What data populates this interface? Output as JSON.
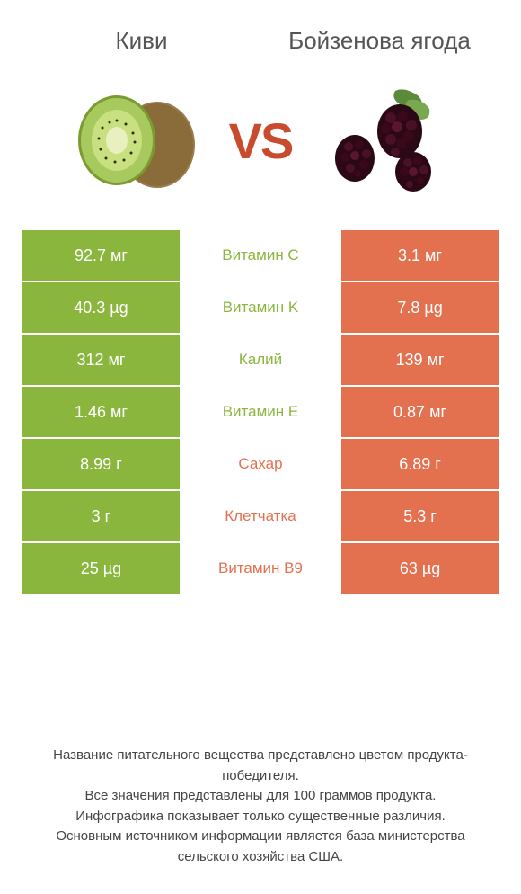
{
  "colors": {
    "left_bg": "#8bb63e",
    "right_bg": "#e3704f",
    "left_text": "#8bb63e",
    "right_text": "#e3704f",
    "vs": "#c94b2e"
  },
  "header": {
    "left_title": "Киви",
    "right_title": "Бойзенова ягода",
    "vs": "VS"
  },
  "nutrients": [
    {
      "left": "92.7 мг",
      "label": "Витамин C",
      "right": "3.1 мг",
      "winner": "left"
    },
    {
      "left": "40.3 µg",
      "label": "Витамин K",
      "right": "7.8 µg",
      "winner": "left"
    },
    {
      "left": "312 мг",
      "label": "Калий",
      "right": "139 мг",
      "winner": "left"
    },
    {
      "left": "1.46 мг",
      "label": "Витамин E",
      "right": "0.87 мг",
      "winner": "left"
    },
    {
      "left": "8.99 г",
      "label": "Сахар",
      "right": "6.89 г",
      "winner": "right"
    },
    {
      "left": "3 г",
      "label": "Клетчатка",
      "right": "5.3 г",
      "winner": "right"
    },
    {
      "left": "25 µg",
      "label": "Витамин B9",
      "right": "63 µg",
      "winner": "right"
    }
  ],
  "footer": {
    "line1": "Название питательного вещества представлено цветом продукта-победителя.",
    "line2": "Все значения представлены для 100 граммов продукта.",
    "line3": "Инфографика показывает только существенные различия.",
    "line4": "Основным источником информации является база министерства сельского хозяйства США."
  }
}
